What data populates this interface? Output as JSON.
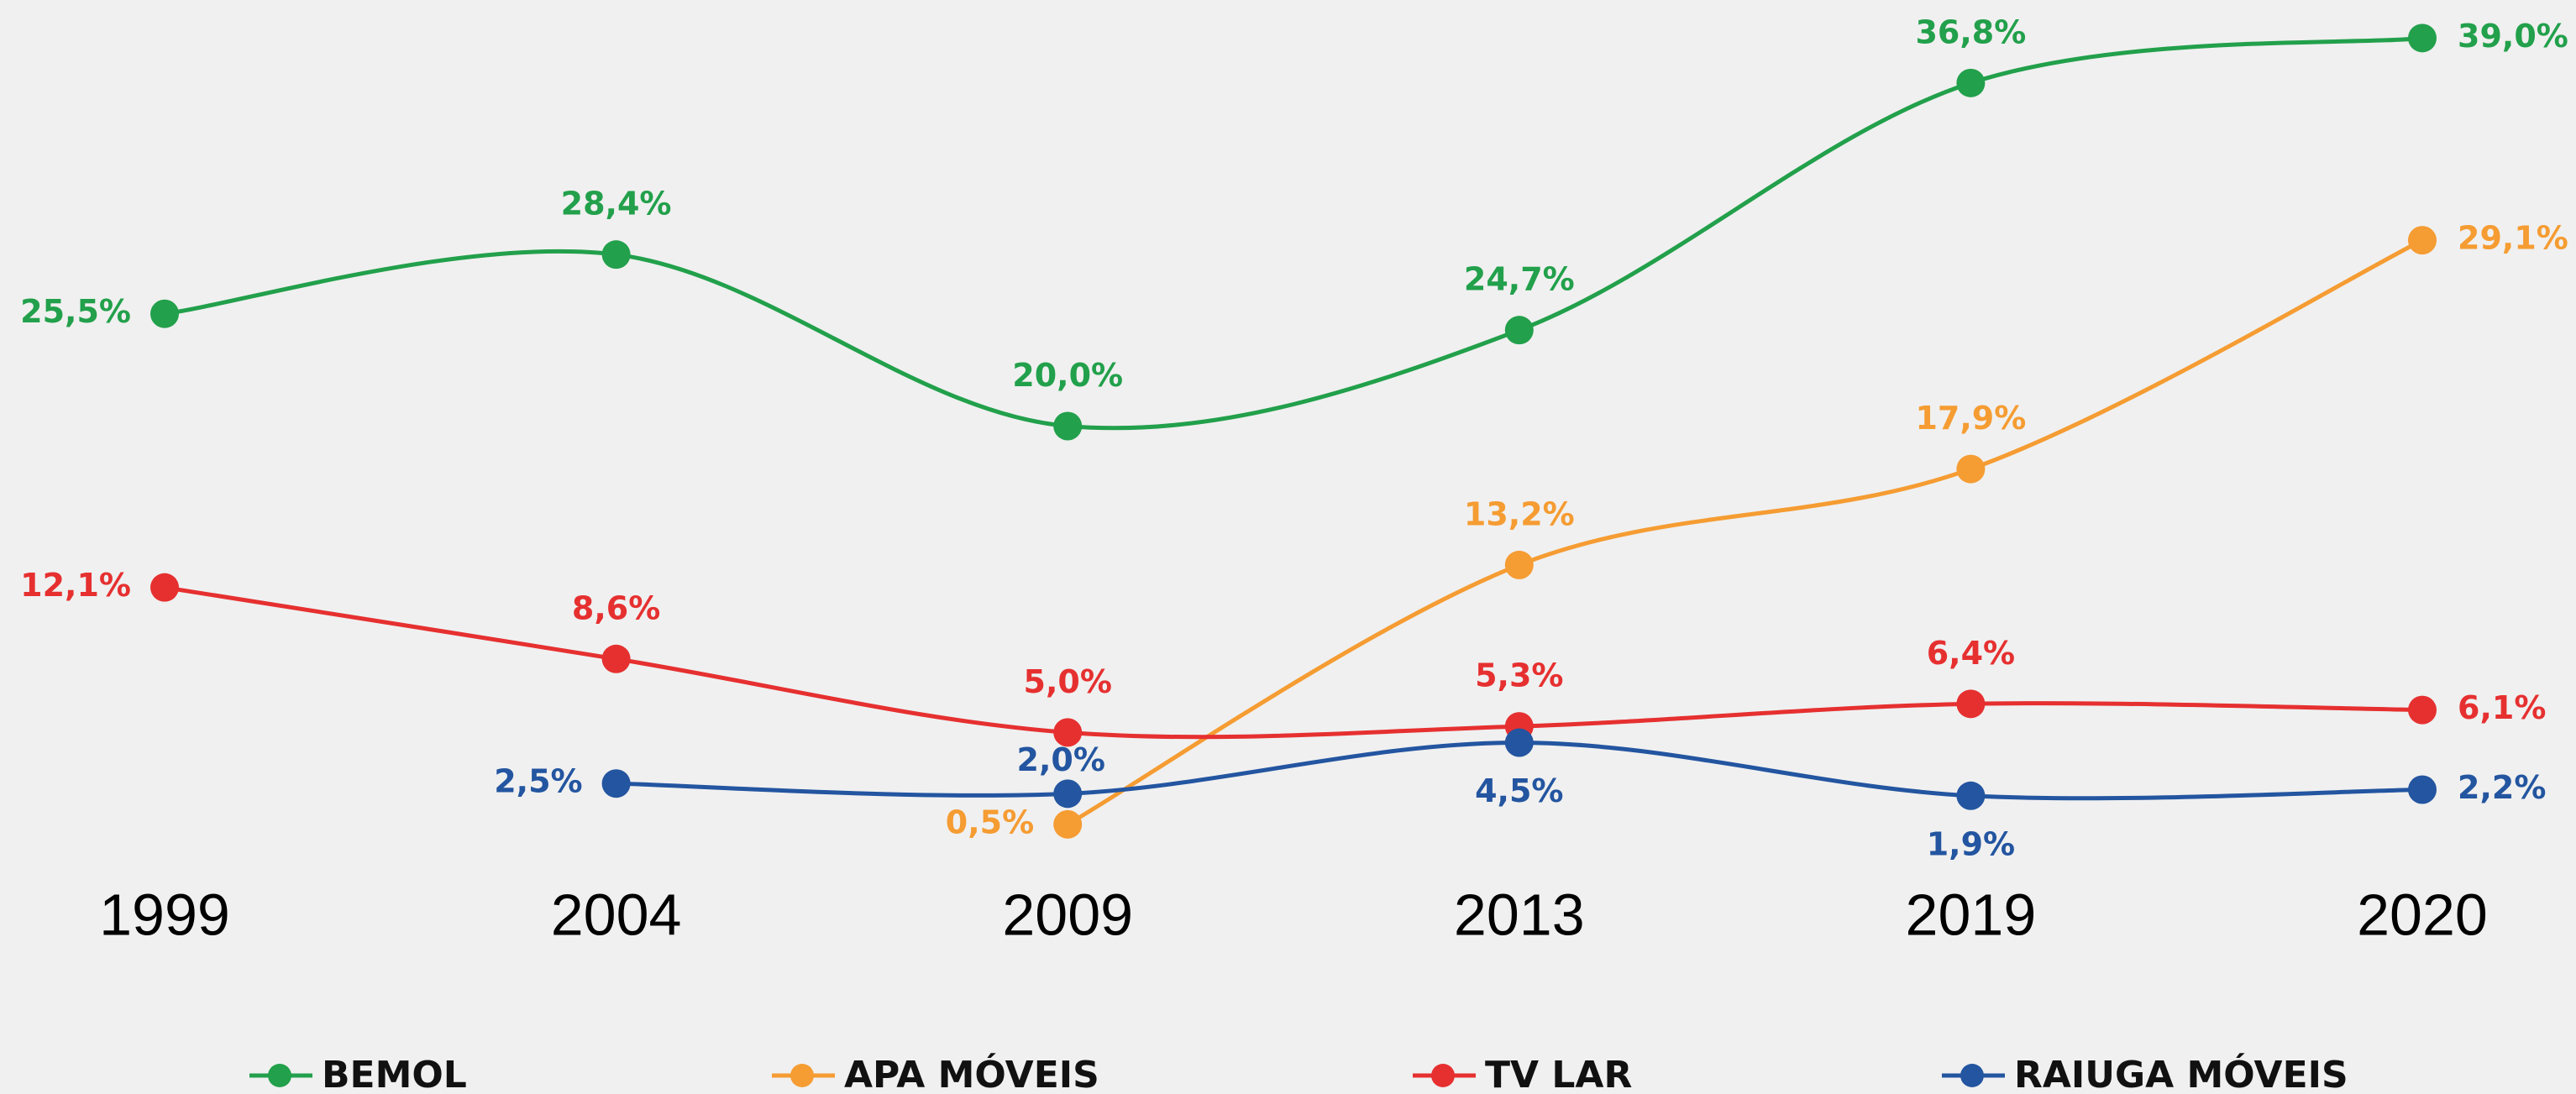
{
  "chart_data": {
    "type": "line",
    "categories": [
      "1999",
      "2004",
      "2009",
      "2013",
      "2019",
      "2020"
    ],
    "ylim": [
      0,
      40
    ],
    "series": [
      {
        "name": "BEMOL",
        "color": "#22a04b",
        "values": [
          25.5,
          28.4,
          20.0,
          24.7,
          36.8,
          39.0
        ],
        "value_labels": [
          "25,5%",
          "28,4%",
          "20,0%",
          "24,7%",
          "36,8%",
          "39,0%"
        ]
      },
      {
        "name": "APA MÓVEIS",
        "color": "#f59c32",
        "values": [
          null,
          null,
          0.5,
          13.2,
          17.9,
          29.1
        ],
        "value_labels": [
          null,
          null,
          "0,5%",
          "13,2%",
          "17,9%",
          "29,1%"
        ]
      },
      {
        "name": "TV LAR",
        "color": "#e63030",
        "values": [
          12.1,
          8.6,
          5.0,
          5.3,
          6.4,
          6.1
        ],
        "value_labels": [
          "12,1%",
          "8,6%",
          "5,0%",
          "5,3%",
          "6,4%",
          "6,1%"
        ]
      },
      {
        "name": "RAIUGA MÓVEIS",
        "color": "#2355a0",
        "values": [
          null,
          2.5,
          2.0,
          4.5,
          1.9,
          2.2
        ],
        "value_labels": [
          null,
          "2,5%",
          "2,0%",
          "4,5%",
          "1,9%",
          "2,2%"
        ]
      }
    ]
  }
}
